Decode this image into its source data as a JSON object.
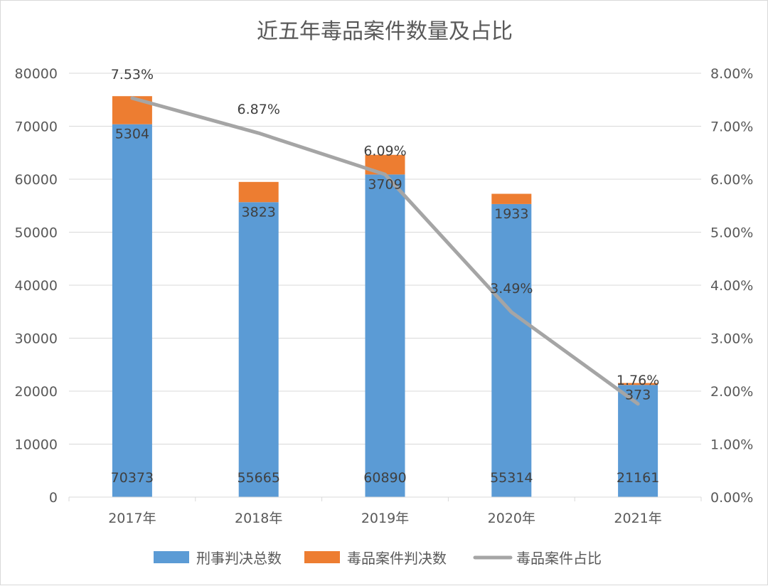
{
  "chart_data": {
    "type": "bar",
    "stacked": true,
    "title": "近五年毒品案件数量及占比",
    "categories": [
      "2017年",
      "2018年",
      "2019年",
      "2020年",
      "2021年"
    ],
    "series": [
      {
        "name": "刑事判决总数",
        "type": "bar",
        "axis": "left",
        "color": "#5b9bd5",
        "values": [
          70373,
          55665,
          60890,
          55314,
          21161
        ]
      },
      {
        "name": "毒品案件判决数",
        "type": "bar",
        "axis": "left",
        "color": "#ed7d31",
        "values": [
          5304,
          3823,
          3709,
          1933,
          373
        ]
      },
      {
        "name": "毒品案件占比",
        "type": "line",
        "axis": "right",
        "color": "#a5a5a5",
        "values": [
          7.53,
          6.87,
          6.09,
          3.49,
          1.76
        ],
        "labels": [
          "7.53%",
          "6.87%",
          "6.09%",
          "3.49%",
          "1.76%"
        ]
      }
    ],
    "y_left": {
      "min": 0,
      "max": 80000,
      "ticks": [
        "0",
        "10000",
        "20000",
        "30000",
        "40000",
        "50000",
        "60000",
        "70000",
        "80000"
      ]
    },
    "y_right": {
      "min": 0,
      "max": 8,
      "ticks": [
        "0.00%",
        "1.00%",
        "2.00%",
        "3.00%",
        "4.00%",
        "5.00%",
        "6.00%",
        "7.00%",
        "8.00%"
      ]
    },
    "grid": true,
    "legend_position": "bottom"
  }
}
